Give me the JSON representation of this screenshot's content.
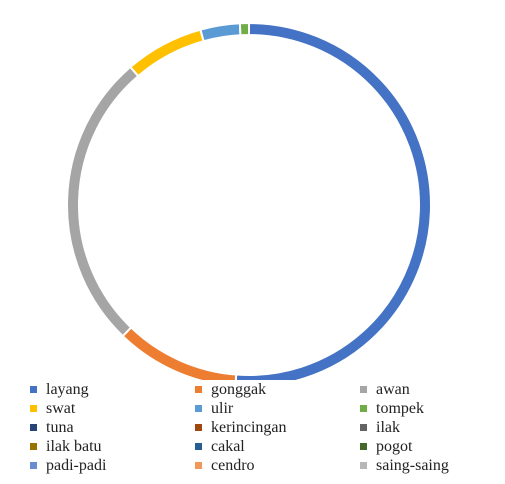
{
  "chart_data": {
    "type": "pie",
    "variant": "donut",
    "title": "",
    "legend_position": "bottom",
    "categories": [
      "layang",
      "gonggak",
      "awan",
      "swat",
      "ulir",
      "tompek",
      "tuna",
      "kerincingan",
      "ilak",
      "ilak batu",
      "cakal",
      "pogot",
      "padi-padi",
      "cendro",
      "saing-saing"
    ],
    "values": [
      51.2,
      11.0,
      26.5,
      7.0,
      3.5,
      0.8,
      0,
      0,
      0,
      0,
      0,
      0,
      0,
      0,
      0
    ],
    "colors": [
      "#4472C4",
      "#ED7D31",
      "#A5A5A5",
      "#FFC000",
      "#5B9BD5",
      "#70AD47",
      "#264478",
      "#9E480E",
      "#636363",
      "#997300",
      "#255E91",
      "#43682B",
      "#698ED0",
      "#F1975A",
      "#B7B7B7"
    ]
  }
}
